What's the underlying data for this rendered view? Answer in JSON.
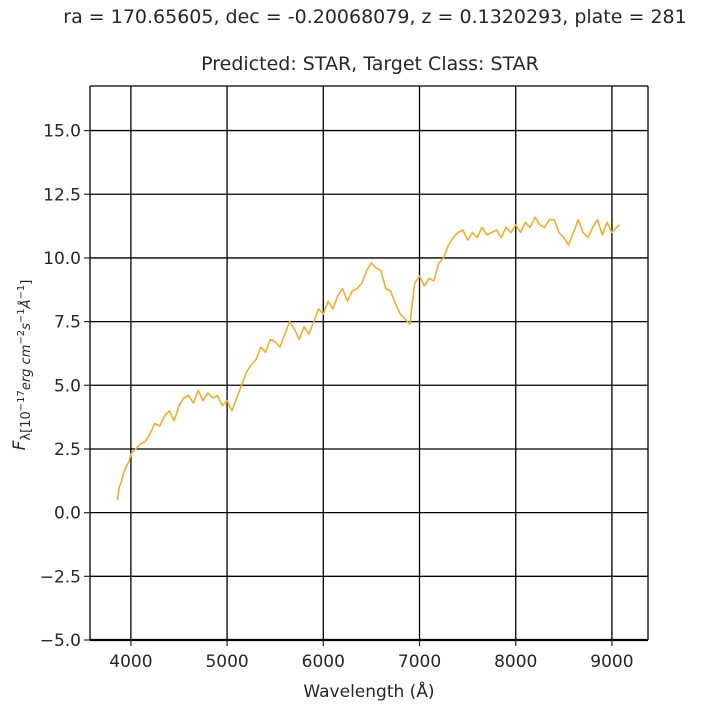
{
  "chart_data": {
    "type": "line",
    "suptitle": "ra = 170.65605, dec = -0.20068079, z = 0.1320293, plate = 281",
    "title": "Predicted: STAR, Target Class: STAR",
    "xlabel": "Wavelength (Å)",
    "ylabel": {
      "main": "F",
      "sub_prefix": "λ[10",
      "sup1": "−17",
      "mid1": "erg cm",
      "sup2": "−2",
      "mid2": "s",
      "sup3": "−1",
      "mid3": "Å",
      "sup4": "−1",
      "suffix": "]"
    },
    "xlim": [
      3575,
      9375
    ],
    "ylim": [
      -5.0,
      16.75
    ],
    "xticks": [
      4000,
      5000,
      6000,
      7000,
      8000,
      9000
    ],
    "xtick_labels": [
      "4000",
      "5000",
      "6000",
      "7000",
      "8000",
      "9000"
    ],
    "yticks": [
      -5.0,
      -2.5,
      0.0,
      2.5,
      5.0,
      7.5,
      10.0,
      12.5,
      15.0
    ],
    "ytick_labels": [
      "−5.0",
      "−2.5",
      "0.0",
      "2.5",
      "5.0",
      "7.5",
      "10.0",
      "12.5",
      "15.0"
    ],
    "grid": true,
    "line_color": "#f0ad32",
    "series": [
      {
        "x": [
          3860,
          3880,
          3900,
          3920,
          3950,
          3980,
          4000,
          4050,
          4100,
          4150,
          4200,
          4250,
          4300,
          4350,
          4400,
          4450,
          4500,
          4550,
          4600,
          4650,
          4700,
          4750,
          4800,
          4850,
          4900,
          4950,
          5000,
          5050,
          5100,
          5150,
          5200,
          5250,
          5300,
          5350,
          5400,
          5450,
          5500,
          5550,
          5600,
          5650,
          5700,
          5750,
          5800,
          5850,
          5900,
          5950,
          6000,
          6050,
          6100,
          6150,
          6200,
          6250,
          6300,
          6350,
          6400,
          6450,
          6500,
          6550,
          6600,
          6650,
          6700,
          6750,
          6800,
          6850,
          6900,
          6950,
          7000,
          7050,
          7100,
          7150,
          7200,
          7250,
          7300,
          7350,
          7400,
          7450,
          7500,
          7550,
          7600,
          7650,
          7700,
          7750,
          7800,
          7850,
          7900,
          7950,
          8000,
          8050,
          8100,
          8150,
          8200,
          8250,
          8300,
          8350,
          8400,
          8450,
          8500,
          8550,
          8600,
          8650,
          8700,
          8750,
          8800,
          8850,
          8900,
          8950,
          9000,
          9050,
          9080
        ],
        "y": [
          0.5,
          1.0,
          1.2,
          1.5,
          1.8,
          2.0,
          2.3,
          2.5,
          2.7,
          2.8,
          3.1,
          3.5,
          3.4,
          3.8,
          4.0,
          3.6,
          4.2,
          4.5,
          4.6,
          4.3,
          4.8,
          4.4,
          4.7,
          4.5,
          4.6,
          4.2,
          4.4,
          4.0,
          4.5,
          5.0,
          5.5,
          5.8,
          6.0,
          6.5,
          6.3,
          6.8,
          6.7,
          6.5,
          7.0,
          7.5,
          7.2,
          6.8,
          7.3,
          7.0,
          7.5,
          8.0,
          7.8,
          8.3,
          8.0,
          8.5,
          8.8,
          8.3,
          8.7,
          8.8,
          9.0,
          9.5,
          9.8,
          9.6,
          9.5,
          8.8,
          8.7,
          8.2,
          7.8,
          7.6,
          7.4,
          9.0,
          9.3,
          8.9,
          9.2,
          9.1,
          9.8,
          10.0,
          10.5,
          10.8,
          11.0,
          11.1,
          10.7,
          11.0,
          10.8,
          11.2,
          10.9,
          11.0,
          11.1,
          10.8,
          11.2,
          11.0,
          11.3,
          11.0,
          11.4,
          11.2,
          11.6,
          11.3,
          11.2,
          11.5,
          11.5,
          11.0,
          10.8,
          10.5,
          11.0,
          11.5,
          11.0,
          10.8,
          11.2,
          11.5,
          10.9,
          11.4,
          11.0,
          11.2,
          11.3
        ]
      }
    ]
  }
}
